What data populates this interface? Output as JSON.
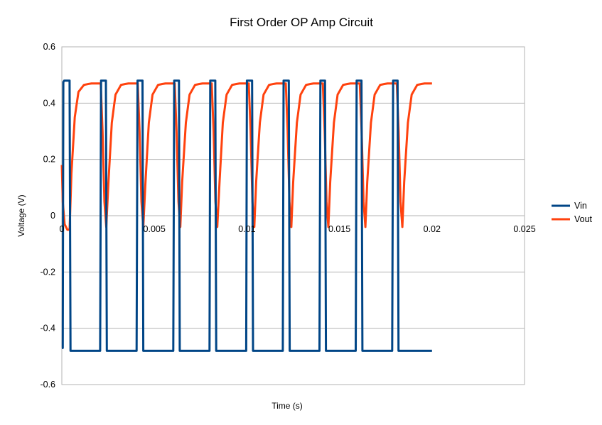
{
  "chart_data": {
    "type": "line",
    "title": "First Order OP Amp Circuit",
    "xlabel": "Time (s)",
    "ylabel": "Voltage (V)",
    "xlim": [
      0,
      0.025
    ],
    "ylim": [
      -0.6,
      0.6
    ],
    "x_ticks": [
      "0",
      "0.005",
      "0.01",
      "0.015",
      "0.02",
      "0.025"
    ],
    "x_tick_values": [
      0,
      0.005,
      0.01,
      0.015,
      0.02,
      0.025
    ],
    "y_ticks": [
      "0.6",
      "0.4",
      "0.2",
      "0",
      "-0.2",
      "-0.4",
      "-0.6"
    ],
    "y_tick_values": [
      0.6,
      0.4,
      0.2,
      0,
      -0.2,
      -0.4,
      -0.6
    ],
    "grid": true,
    "legend_position": "right",
    "series": [
      {
        "name": "Vin",
        "color": "#004586",
        "x": [
          0,
          5e-05,
          8e-05,
          0.00013,
          0.00042,
          0.00047,
          0.00207,
          0.00212,
          0.00238,
          0.00243,
          0.00404,
          0.00409,
          0.00436,
          0.0044,
          0.00602,
          0.00607,
          0.00633,
          0.00637,
          0.00798,
          0.00802,
          0.00829,
          0.00834,
          0.00996,
          0.01,
          0.01028,
          0.01033,
          0.01194,
          0.01198,
          0.01226,
          0.01231,
          0.01392,
          0.01397,
          0.01422,
          0.01427,
          0.01588,
          0.01593,
          0.01619,
          0.01624,
          0.01785,
          0.0179,
          0.01814,
          0.01819,
          0.02
        ],
        "y": [
          -0.47,
          -0.47,
          0.475,
          0.48,
          0.48,
          -0.48,
          -0.48,
          0.48,
          0.48,
          -0.48,
          -0.48,
          0.48,
          0.48,
          -0.48,
          -0.48,
          0.48,
          0.48,
          -0.48,
          -0.48,
          0.48,
          0.48,
          -0.48,
          -0.48,
          0.48,
          0.48,
          -0.48,
          -0.48,
          0.48,
          0.48,
          -0.48,
          -0.48,
          0.48,
          0.48,
          -0.48,
          -0.48,
          0.48,
          0.48,
          -0.48,
          -0.48,
          0.48,
          0.48,
          -0.48,
          -0.48
        ]
      },
      {
        "name": "Vout",
        "color": "#ff420e",
        "x": [
          0,
          5e-05,
          0.00015,
          0.0003,
          0.00042,
          0.00052,
          0.0007,
          0.0009,
          0.0012,
          0.0016,
          0.0019,
          0.0021,
          0.0022,
          0.0023,
          0.0024,
          0.00252,
          0.0027,
          0.0029,
          0.0032,
          0.0036,
          0.0039,
          0.0041,
          0.0042,
          0.0043,
          0.0044,
          0.00452,
          0.0047,
          0.0049,
          0.0052,
          0.0056,
          0.0059,
          0.0061,
          0.0062,
          0.0063,
          0.0064,
          0.0065,
          0.0067,
          0.0069,
          0.0072,
          0.0076,
          0.0079,
          0.0081,
          0.0082,
          0.0083,
          0.0084,
          0.00852,
          0.0087,
          0.0089,
          0.0092,
          0.0096,
          0.0099,
          0.0101,
          0.0102,
          0.0103,
          0.0104,
          0.0105,
          0.0107,
          0.0109,
          0.0112,
          0.0116,
          0.0119,
          0.0121,
          0.0122,
          0.0123,
          0.0124,
          0.0125,
          0.0127,
          0.0129,
          0.0132,
          0.0136,
          0.0139,
          0.0141,
          0.0142,
          0.0143,
          0.0144,
          0.0145,
          0.0147,
          0.0149,
          0.0152,
          0.0156,
          0.0159,
          0.0161,
          0.0162,
          0.0163,
          0.0164,
          0.0165,
          0.0167,
          0.0169,
          0.0172,
          0.0176,
          0.0179,
          0.0181,
          0.0182,
          0.0183,
          0.0184,
          0.0185,
          0.0187,
          0.0189,
          0.0192,
          0.0196,
          0.02
        ],
        "y": [
          0.18,
          0.05,
          -0.03,
          -0.05,
          -0.05,
          0.15,
          0.35,
          0.44,
          0.465,
          0.47,
          0.47,
          0.47,
          0.3,
          0.05,
          -0.04,
          0.12,
          0.33,
          0.43,
          0.465,
          0.47,
          0.47,
          0.47,
          0.3,
          0.05,
          -0.04,
          0.12,
          0.33,
          0.43,
          0.465,
          0.47,
          0.47,
          0.47,
          0.3,
          0.05,
          -0.04,
          0.12,
          0.33,
          0.43,
          0.465,
          0.47,
          0.47,
          0.47,
          0.3,
          0.05,
          -0.04,
          0.12,
          0.33,
          0.43,
          0.465,
          0.47,
          0.47,
          0.47,
          0.3,
          0.05,
          -0.04,
          0.12,
          0.33,
          0.43,
          0.465,
          0.47,
          0.47,
          0.47,
          0.3,
          0.05,
          -0.04,
          0.12,
          0.33,
          0.43,
          0.465,
          0.47,
          0.47,
          0.47,
          0.3,
          0.05,
          -0.04,
          0.12,
          0.33,
          0.43,
          0.465,
          0.47,
          0.47,
          0.47,
          0.3,
          0.05,
          -0.04,
          0.12,
          0.33,
          0.43,
          0.465,
          0.47,
          0.47,
          0.47,
          0.3,
          0.05,
          -0.04,
          0.12,
          0.33,
          0.43,
          0.465,
          0.47,
          0.47
        ]
      }
    ]
  }
}
